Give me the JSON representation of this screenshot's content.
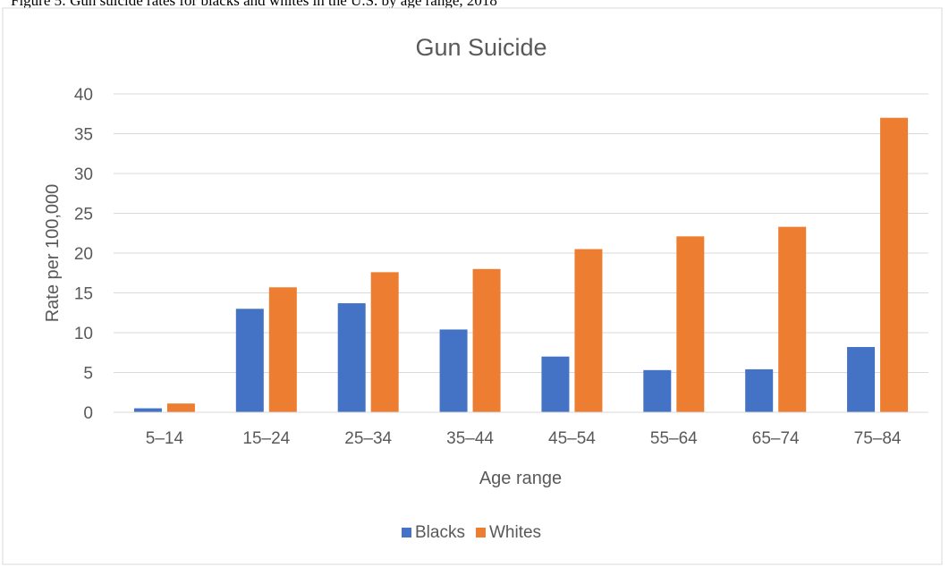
{
  "caption": "Figure 5: Gun suicide rates for blacks and whites in the U.S. by age range, 2018",
  "chart_data": {
    "type": "bar",
    "title": "Gun Suicide",
    "xlabel": "Age range",
    "ylabel": "Rate per 100,000",
    "ylim": [
      0,
      40
    ],
    "yticks": [
      0,
      5,
      10,
      15,
      20,
      25,
      30,
      35,
      40
    ],
    "grid": true,
    "legend_position": "bottom",
    "categories": [
      "5–14",
      "15–24",
      "25–34",
      "35–44",
      "45–54",
      "55–64",
      "65–74",
      "75–84"
    ],
    "series": [
      {
        "name": "Blacks",
        "color": "#4472C4",
        "values": [
          0.5,
          13.0,
          13.7,
          10.4,
          7.0,
          5.3,
          5.4,
          8.2
        ]
      },
      {
        "name": "Whites",
        "color": "#ED7D31",
        "values": [
          1.1,
          15.7,
          17.6,
          18.0,
          20.5,
          22.1,
          23.3,
          37.0
        ]
      }
    ]
  }
}
